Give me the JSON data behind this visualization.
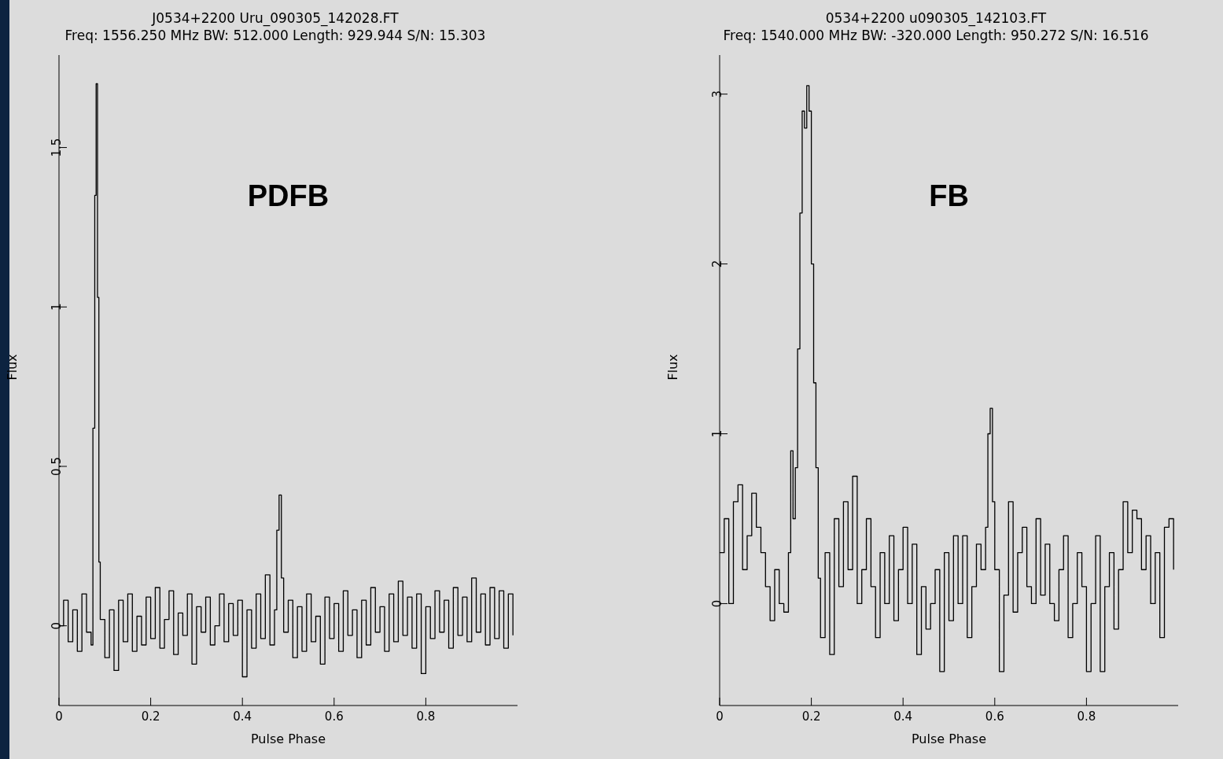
{
  "chart_data": [
    {
      "type": "step",
      "title": "J0534+2200 Uru_090305_142028.FT",
      "subtitle": "Freq: 1556.250 MHz BW: 512.000 Length: 929.944 S/N: 15.303",
      "xlabel": "Pulse Phase",
      "ylabel": "Flux",
      "annotations": [
        "PDFB"
      ],
      "color": "#000000",
      "xlim": [
        0,
        1
      ],
      "ylim": [
        -0.25,
        1.79
      ],
      "xticks": [
        0,
        0.2,
        0.4,
        0.6,
        0.8
      ],
      "yticks": [
        0,
        0.5,
        1,
        1.5
      ],
      "x": [
        0,
        0.01,
        0.02,
        0.03,
        0.04,
        0.05,
        0.06,
        0.07,
        0.074,
        0.078,
        0.081,
        0.084,
        0.087,
        0.09,
        0.1,
        0.11,
        0.12,
        0.13,
        0.14,
        0.15,
        0.16,
        0.17,
        0.18,
        0.19,
        0.2,
        0.21,
        0.22,
        0.23,
        0.24,
        0.25,
        0.26,
        0.27,
        0.28,
        0.29,
        0.3,
        0.31,
        0.32,
        0.33,
        0.34,
        0.35,
        0.36,
        0.37,
        0.38,
        0.39,
        0.4,
        0.41,
        0.42,
        0.43,
        0.44,
        0.45,
        0.46,
        0.47,
        0.475,
        0.48,
        0.485,
        0.49,
        0.5,
        0.51,
        0.52,
        0.53,
        0.54,
        0.55,
        0.56,
        0.57,
        0.58,
        0.59,
        0.6,
        0.61,
        0.62,
        0.63,
        0.64,
        0.65,
        0.66,
        0.67,
        0.68,
        0.69,
        0.7,
        0.71,
        0.72,
        0.73,
        0.74,
        0.75,
        0.76,
        0.77,
        0.78,
        0.79,
        0.8,
        0.81,
        0.82,
        0.83,
        0.84,
        0.85,
        0.86,
        0.87,
        0.88,
        0.89,
        0.9,
        0.91,
        0.92,
        0.93,
        0.94,
        0.95,
        0.96,
        0.97,
        0.98,
        0.99
      ],
      "values": [
        0,
        0.08,
        -0.05,
        0.05,
        -0.08,
        0.1,
        -0.02,
        -0.06,
        0.62,
        1.35,
        1.7,
        1.03,
        0.2,
        0.02,
        -0.1,
        0.05,
        -0.14,
        0.08,
        -0.05,
        0.1,
        -0.08,
        0.03,
        -0.06,
        0.09,
        -0.04,
        0.12,
        -0.07,
        0.02,
        0.11,
        -0.09,
        0.04,
        -0.03,
        0.1,
        -0.12,
        0.06,
        -0.02,
        0.09,
        -0.06,
        0,
        0.1,
        -0.05,
        0.07,
        -0.03,
        0.08,
        -0.16,
        0.05,
        -0.07,
        0.1,
        -0.04,
        0.16,
        -0.06,
        0.05,
        0.3,
        0.41,
        0.15,
        -0.02,
        0.08,
        -0.1,
        0.06,
        -0.08,
        0.1,
        -0.05,
        0.03,
        -0.12,
        0.09,
        -0.04,
        0.07,
        -0.08,
        0.11,
        -0.03,
        0.05,
        -0.1,
        0.08,
        -0.06,
        0.12,
        -0.02,
        0.06,
        -0.08,
        0.1,
        -0.05,
        0.14,
        -0.03,
        0.09,
        -0.07,
        0.1,
        -0.15,
        0.06,
        -0.04,
        0.11,
        -0.02,
        0.08,
        -0.07,
        0.12,
        -0.03,
        0.09,
        -0.05,
        0.15,
        -0.02,
        0.1,
        -0.06,
        0.12,
        -0.04,
        0.11,
        -0.07,
        0.1,
        -0.03
      ]
    },
    {
      "type": "step",
      "title": "0534+2200 u090305_142103.FT",
      "subtitle": "Freq: 1540.000 MHz BW: -320.000 Length: 950.272 S/N: 16.516",
      "xlabel": "Pulse Phase",
      "ylabel": "Flux",
      "annotations": [
        "FB"
      ],
      "color": "#000000",
      "xlim": [
        0,
        1
      ],
      "ylim": [
        -0.6,
        3.23
      ],
      "xticks": [
        0,
        0.2,
        0.4,
        0.6,
        0.8
      ],
      "yticks": [
        0,
        1,
        2,
        3
      ],
      "x": [
        0,
        0.01,
        0.02,
        0.03,
        0.04,
        0.05,
        0.06,
        0.07,
        0.08,
        0.09,
        0.1,
        0.11,
        0.12,
        0.13,
        0.14,
        0.15,
        0.155,
        0.16,
        0.165,
        0.17,
        0.175,
        0.18,
        0.185,
        0.19,
        0.195,
        0.2,
        0.205,
        0.21,
        0.215,
        0.22,
        0.23,
        0.24,
        0.25,
        0.26,
        0.27,
        0.28,
        0.29,
        0.3,
        0.31,
        0.32,
        0.33,
        0.34,
        0.35,
        0.36,
        0.37,
        0.38,
        0.39,
        0.4,
        0.41,
        0.42,
        0.43,
        0.44,
        0.45,
        0.46,
        0.47,
        0.48,
        0.49,
        0.5,
        0.51,
        0.52,
        0.53,
        0.54,
        0.55,
        0.56,
        0.57,
        0.58,
        0.585,
        0.59,
        0.595,
        0.6,
        0.61,
        0.62,
        0.63,
        0.64,
        0.65,
        0.66,
        0.67,
        0.68,
        0.69,
        0.7,
        0.71,
        0.72,
        0.73,
        0.74,
        0.75,
        0.76,
        0.77,
        0.78,
        0.79,
        0.8,
        0.81,
        0.82,
        0.83,
        0.84,
        0.85,
        0.86,
        0.87,
        0.88,
        0.89,
        0.9,
        0.91,
        0.92,
        0.93,
        0.94,
        0.95,
        0.96,
        0.97,
        0.98,
        0.99
      ],
      "values": [
        0.3,
        0.5,
        0,
        0.6,
        0.7,
        0.2,
        0.4,
        0.65,
        0.45,
        0.3,
        0.1,
        -0.1,
        0.2,
        0,
        -0.05,
        0.3,
        0.9,
        0.5,
        0.8,
        1.5,
        2.3,
        2.9,
        2.8,
        3.05,
        2.9,
        2,
        1.3,
        0.8,
        0.15,
        -0.2,
        0.3,
        -0.3,
        0.5,
        0.1,
        0.6,
        0.2,
        0.75,
        0,
        0.2,
        0.5,
        0.1,
        -0.2,
        0.3,
        0,
        0.4,
        -0.1,
        0.2,
        0.45,
        0,
        0.35,
        -0.3,
        0.1,
        -0.15,
        0,
        0.2,
        -0.4,
        0.3,
        -0.1,
        0.4,
        0,
        0.4,
        -0.2,
        0.1,
        0.35,
        0.2,
        0.45,
        1,
        1.15,
        0.6,
        0.2,
        -0.4,
        0.05,
        0.6,
        -0.05,
        0.3,
        0.45,
        0.1,
        0,
        0.5,
        0.05,
        0.35,
        0,
        -0.1,
        0.2,
        0.4,
        -0.2,
        0,
        0.3,
        0.1,
        -0.4,
        0,
        0.4,
        -0.4,
        0.1,
        0.3,
        -0.15,
        0.2,
        0.6,
        0.3,
        0.55,
        0.5,
        0.2,
        0.4,
        0,
        0.3,
        -0.2,
        0.45,
        0.5,
        0.2
      ]
    }
  ]
}
